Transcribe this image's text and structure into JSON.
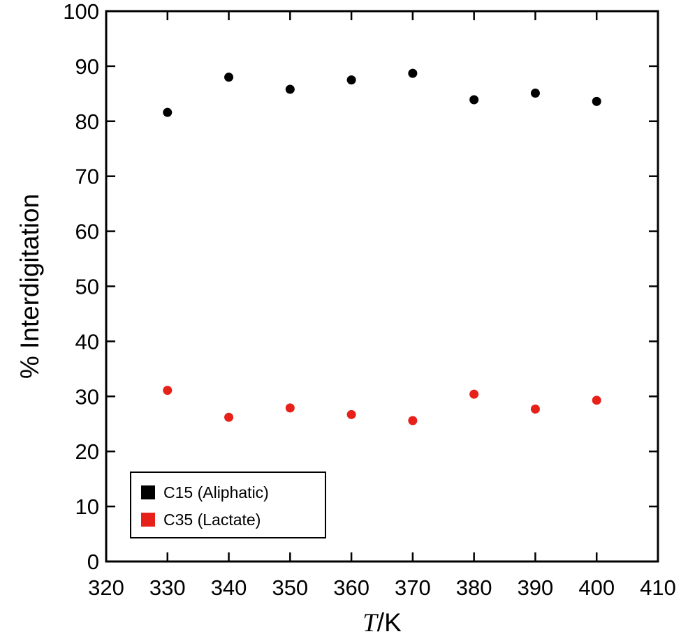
{
  "chart_data": {
    "type": "scatter",
    "title": "",
    "xlabel_italic": "T",
    "xlabel_rest": "/K",
    "ylabel": "% Interdigitation",
    "xlim": [
      320,
      410
    ],
    "ylim": [
      0,
      100
    ],
    "xticks": [
      320,
      330,
      340,
      350,
      360,
      370,
      380,
      390,
      400,
      410
    ],
    "yticks": [
      0,
      10,
      20,
      30,
      40,
      50,
      60,
      70,
      80,
      90,
      100
    ],
    "grid": false,
    "legend_position": "bottom-left",
    "series": [
      {
        "name": "C15 (Aliphatic)",
        "color": "#000000",
        "x": [
          330,
          340,
          350,
          360,
          370,
          380,
          390,
          400
        ],
        "y": [
          81.6,
          88.0,
          85.8,
          87.5,
          88.7,
          83.9,
          85.1,
          83.6
        ]
      },
      {
        "name": "C35 (Lactate)",
        "color": "#e8201a",
        "x": [
          330,
          340,
          350,
          360,
          370,
          380,
          390,
          400
        ],
        "y": [
          31.1,
          26.2,
          27.9,
          26.7,
          25.6,
          30.4,
          27.7,
          29.3
        ]
      }
    ]
  }
}
